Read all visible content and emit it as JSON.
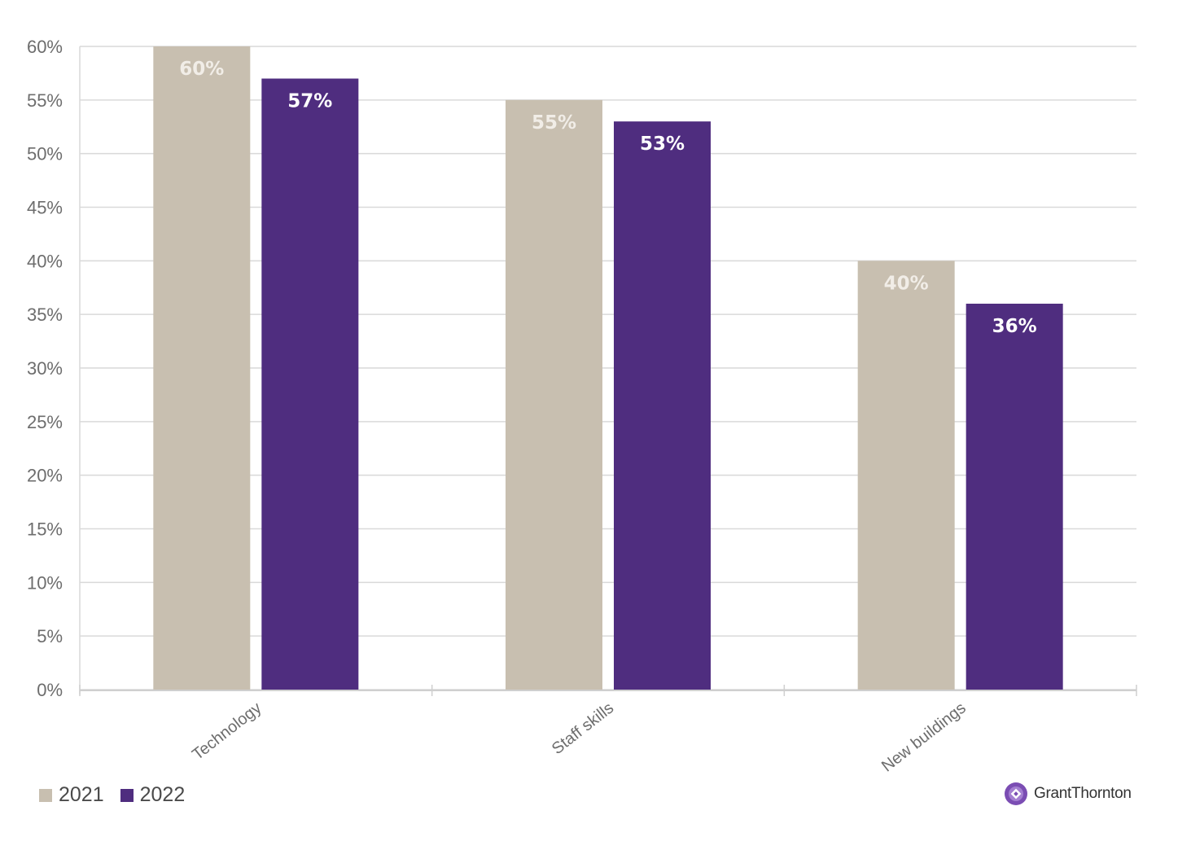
{
  "chart_data": {
    "type": "bar",
    "categories": [
      "Technology",
      "Staff skills",
      "New buildings"
    ],
    "series": [
      {
        "name": "2021",
        "values": [
          60,
          55,
          40
        ],
        "labels": [
          "60%",
          "55%",
          "40%"
        ],
        "color": "#c8bfb0",
        "label_color": "#f1ede7"
      },
      {
        "name": "2022",
        "values": [
          57,
          53,
          36
        ],
        "labels": [
          "57%",
          "53%",
          "36%"
        ],
        "color": "#4f2d7f",
        "label_color": "#ffffff"
      }
    ],
    "y_ticks": [
      "0%",
      "5%",
      "10%",
      "15%",
      "20%",
      "25%",
      "30%",
      "35%",
      "40%",
      "45%",
      "50%",
      "55%",
      "60%"
    ],
    "ylim": [
      0,
      60
    ],
    "grid": true,
    "legend_position": "bottom-left"
  },
  "brand": {
    "name": "GrantThornton",
    "logo_icon": "grant-thornton-logo-icon",
    "logo_color": "#7b4db3"
  }
}
